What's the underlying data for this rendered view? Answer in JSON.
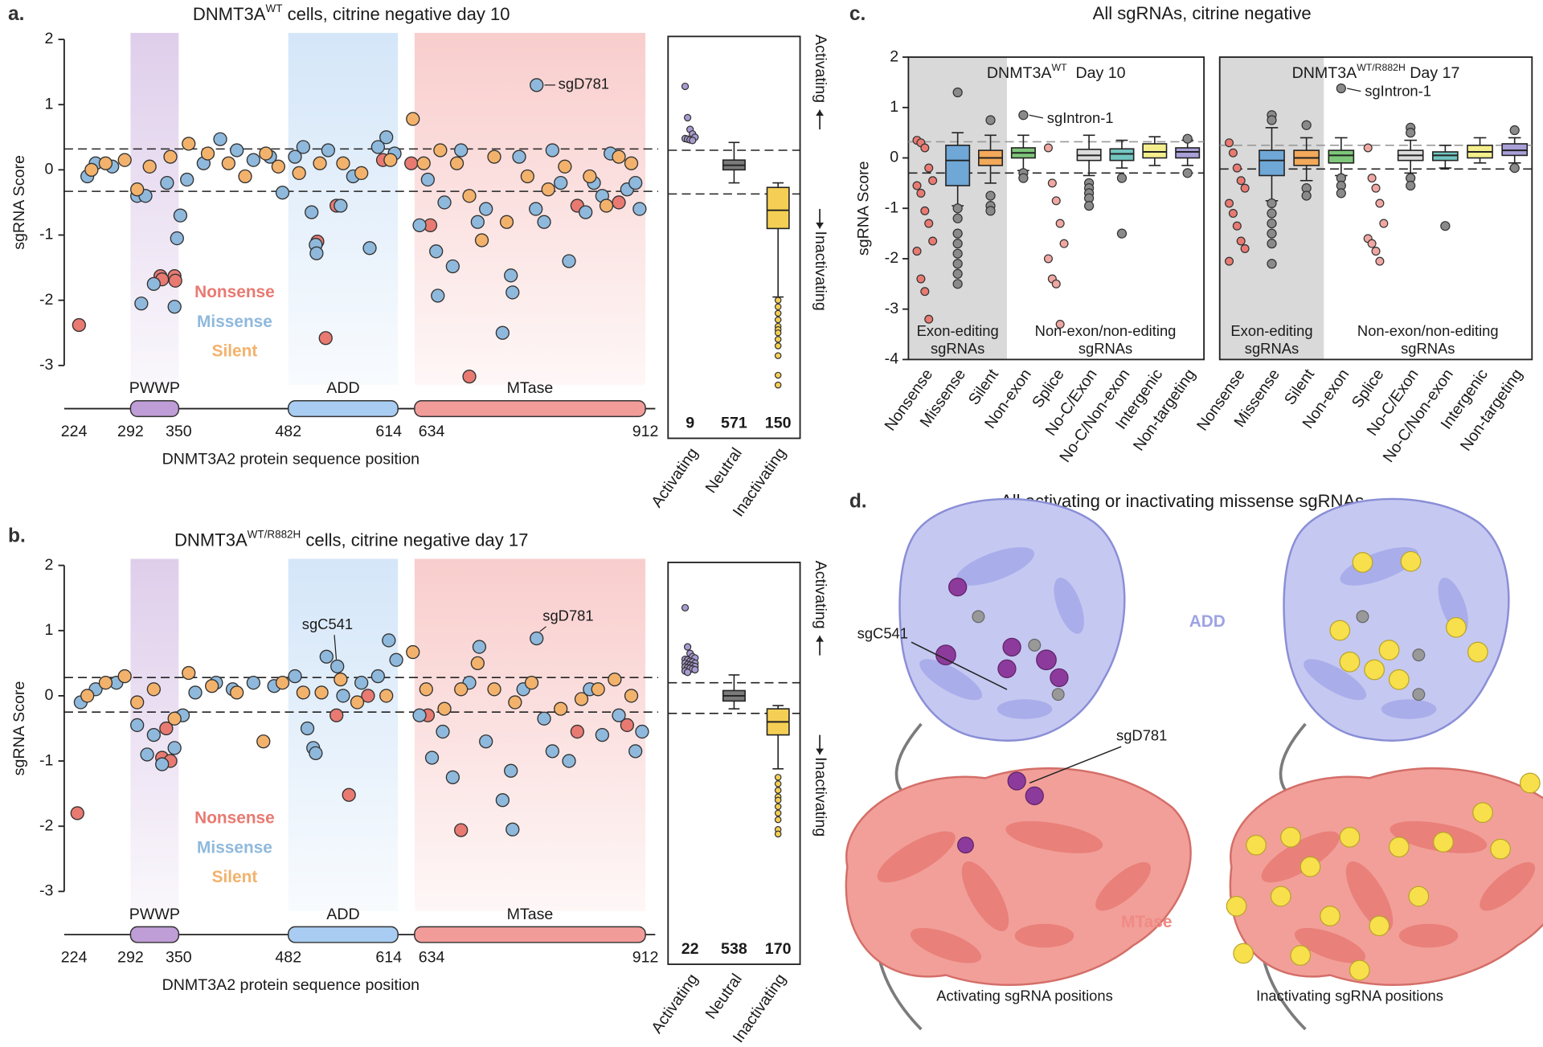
{
  "chart_data": [
    {
      "type": "scatter",
      "panel": "a.",
      "title": {
        "main": "DNMT3A",
        "sup": "WT",
        "rest": " cells, citrine negative day 10"
      },
      "ylabel": "sgRNA Score",
      "xlabel": "DNMT3A2 protein sequence position",
      "xlim": [
        224,
        912
      ],
      "xticks": [
        224,
        292,
        350,
        482,
        614,
        634,
        912
      ],
      "ylim": [
        -3.3,
        2.1
      ],
      "yticks": [
        -3,
        -2,
        -1,
        0,
        1,
        2
      ],
      "thresholds": [
        0.32,
        -0.33
      ],
      "domains": [
        {
          "name": "PWWP",
          "start": 292,
          "end": 350,
          "color": "#bf9dd6"
        },
        {
          "name": "ADD",
          "start": 482,
          "end": 614,
          "color": "#a9cdf2"
        },
        {
          "name": "MTase",
          "start": 634,
          "end": 912,
          "color": "#f29c9a"
        }
      ],
      "series": [
        {
          "name": "Nonsense",
          "color": "#e87a72",
          "x": [
            230,
            328,
            330,
            345,
            346,
            517,
            527,
            596,
            653,
            700,
            830,
            880,
            540,
            630
          ],
          "values": [
            -2.38,
            -1.63,
            -1.68,
            -1.63,
            -1.7,
            -1.1,
            -2.58,
            0.15,
            -0.85,
            -3.17,
            -0.55,
            -0.5,
            -0.55,
            0.1
          ]
        },
        {
          "name": "Missense",
          "color": "#8fb9dc",
          "x": [
            781,
            240,
            250,
            270,
            300,
            310,
            305,
            320,
            336,
            345,
            348,
            352,
            360,
            380,
            400,
            420,
            440,
            460,
            475,
            490,
            500,
            510,
            515,
            516,
            530,
            545,
            560,
            580,
            590,
            600,
            610,
            640,
            650,
            660,
            662,
            670,
            680,
            690,
            710,
            720,
            740,
            750,
            752,
            760,
            780,
            790,
            800,
            810,
            820,
            840,
            850,
            860,
            870,
            890,
            900,
            905
          ],
          "values": [
            1.3,
            -0.1,
            0.1,
            0.05,
            -0.4,
            -0.4,
            -2.05,
            -1.75,
            -0.2,
            -2.1,
            -1.05,
            -0.7,
            -0.15,
            0.1,
            0.47,
            0.3,
            0.15,
            0.2,
            -0.35,
            0.2,
            0.35,
            -0.65,
            -1.15,
            -1.28,
            0.3,
            -0.55,
            -0.1,
            -1.2,
            0.35,
            0.5,
            0.25,
            -0.85,
            -0.15,
            -1.25,
            -1.93,
            -0.5,
            -1.48,
            0.3,
            -0.8,
            -0.6,
            -2.5,
            -1.62,
            -1.88,
            0.2,
            -0.6,
            -0.8,
            0.3,
            -0.2,
            -1.4,
            -0.65,
            -0.2,
            -0.4,
            0.25,
            -0.3,
            -0.2,
            -0.6
          ]
        },
        {
          "name": "Silent",
          "color": "#f3b26c",
          "x": [
            245,
            262,
            285,
            300,
            315,
            340,
            362,
            385,
            410,
            430,
            455,
            470,
            495,
            520,
            548,
            570,
            605,
            632,
            645,
            665,
            685,
            700,
            715,
            730,
            745,
            770,
            795,
            815,
            845,
            865,
            880,
            895
          ],
          "values": [
            0.0,
            0.1,
            0.15,
            -0.3,
            0.05,
            0.2,
            0.4,
            0.25,
            0.1,
            -0.1,
            0.25,
            0.05,
            -0.05,
            0.1,
            0.1,
            -0.05,
            0.15,
            0.78,
            0.1,
            0.3,
            0.1,
            -0.4,
            -1.08,
            0.2,
            -0.8,
            -0.1,
            -0.3,
            0.05,
            -0.1,
            -0.55,
            0.2,
            0.1
          ]
        }
      ],
      "annotations": [
        {
          "text": "sgD781",
          "x": 781,
          "y": 1.3
        }
      ]
    },
    {
      "type": "box",
      "categories": [
        "Activating",
        "Neutral",
        "Inactivating"
      ],
      "counts": [
        9,
        571,
        150
      ],
      "ylim": [
        -3.3,
        2.1
      ],
      "thresholds": [
        0.3,
        -0.37
      ],
      "side_labels": [
        "Activating",
        "Inactivating"
      ],
      "boxes": [
        {
          "color": "#a99bd2",
          "points": [
            1.28,
            0.8,
            0.62,
            0.55,
            0.5,
            0.48,
            0.47,
            0.46,
            0.45
          ]
        },
        {
          "color": "#7a7a7a",
          "q1": 0.0,
          "median": 0.07,
          "q3": 0.15,
          "whislo": -0.2,
          "whishi": 0.42,
          "fliers": []
        },
        {
          "color": "#f5cf55",
          "q1": -0.9,
          "median": -0.62,
          "q3": -0.27,
          "whislo": -1.95,
          "whishi": -0.2,
          "fliers": [
            -2.0,
            -2.1,
            -2.2,
            -2.3,
            -2.4,
            -2.45,
            -2.5,
            -2.6,
            -2.7,
            -2.85,
            -3.15,
            -3.3
          ]
        }
      ]
    },
    {
      "type": "scatter",
      "panel": "b.",
      "title": {
        "main": "DNMT3A",
        "sup": "WT/R882H",
        "rest": " cells, citrine negative day 17"
      },
      "ylabel": "sgRNA Score",
      "xlabel": "DNMT3A2 protein sequence position",
      "xlim": [
        224,
        912
      ],
      "xticks": [
        224,
        292,
        350,
        482,
        614,
        634,
        912
      ],
      "ylim": [
        -3.3,
        2.1
      ],
      "yticks": [
        -3,
        -2,
        -1,
        0,
        1,
        2
      ],
      "thresholds": [
        0.28,
        -0.25
      ],
      "domains": [
        {
          "name": "PWWP",
          "start": 292,
          "end": 350,
          "color": "#bf9dd6"
        },
        {
          "name": "ADD",
          "start": 482,
          "end": 614,
          "color": "#a9cdf2"
        },
        {
          "name": "MTase",
          "start": 634,
          "end": 912,
          "color": "#f29c9a"
        }
      ],
      "series": [
        {
          "name": "Nonsense",
          "color": "#e87a72",
          "x": [
            228,
            330,
            340,
            335,
            555,
            578,
            650,
            690,
            830,
            890,
            540
          ],
          "values": [
            -1.8,
            -0.95,
            -1.0,
            -0.5,
            -1.52,
            0.0,
            -0.3,
            -2.06,
            -0.55,
            -0.45,
            -0.3
          ]
        },
        {
          "name": "Missense",
          "color": "#8fb9dc",
          "x": [
            541,
            781,
            232,
            250,
            275,
            300,
            312,
            320,
            330,
            345,
            355,
            370,
            395,
            415,
            440,
            465,
            490,
            505,
            512,
            515,
            528,
            548,
            570,
            590,
            603,
            612,
            640,
            655,
            668,
            680,
            700,
            712,
            720,
            740,
            750,
            752,
            765,
            790,
            800,
            820,
            845,
            860,
            880,
            900,
            908
          ],
          "values": [
            0.45,
            0.88,
            -0.1,
            0.1,
            0.2,
            -0.45,
            -0.9,
            -0.6,
            -1.05,
            -0.8,
            -0.3,
            0.05,
            0.2,
            0.1,
            0.2,
            0.15,
            0.3,
            -0.5,
            -0.8,
            -0.88,
            0.6,
            0.0,
            0.2,
            0.3,
            0.85,
            0.55,
            -0.3,
            -0.95,
            -0.55,
            -1.25,
            0.2,
            0.75,
            -0.7,
            -1.6,
            -1.15,
            -2.05,
            0.1,
            -0.35,
            -0.85,
            -1.0,
            0.1,
            -0.6,
            -0.3,
            -0.85,
            -0.55
          ]
        },
        {
          "name": "Silent",
          "color": "#f3b26c",
          "x": [
            240,
            262,
            285,
            300,
            320,
            345,
            362,
            390,
            420,
            452,
            475,
            500,
            522,
            545,
            565,
            600,
            632,
            648,
            670,
            690,
            710,
            730,
            755,
            775,
            810,
            835,
            855,
            875,
            895
          ],
          "values": [
            0.0,
            0.2,
            0.3,
            -0.1,
            0.1,
            -0.35,
            0.35,
            0.15,
            0.05,
            -0.7,
            0.2,
            0.05,
            0.05,
            0.25,
            -0.1,
            0.0,
            0.67,
            0.1,
            -0.2,
            0.1,
            0.5,
            0.1,
            -0.1,
            0.2,
            -0.2,
            -0.05,
            0.1,
            0.25,
            0.0
          ]
        }
      ],
      "annotations": [
        {
          "text": "sgC541",
          "x": 541,
          "y": 0.45
        },
        {
          "text": "sgD781",
          "x": 781,
          "y": 0.88
        }
      ]
    },
    {
      "type": "box",
      "categories": [
        "Activating",
        "Neutral",
        "Inactivating"
      ],
      "counts": [
        22,
        538,
        170
      ],
      "ylim": [
        -3.3,
        2.1
      ],
      "thresholds": [
        0.2,
        -0.27
      ],
      "side_labels": [
        "Activating",
        "Inactivating"
      ],
      "boxes": [
        {
          "color": "#a99bd2",
          "points": [
            1.35,
            0.75,
            0.65,
            0.6,
            0.58,
            0.56,
            0.55,
            0.53,
            0.52,
            0.5,
            0.5,
            0.48,
            0.47,
            0.46,
            0.45,
            0.44,
            0.43,
            0.42,
            0.41,
            0.4,
            0.38,
            0.36
          ]
        },
        {
          "color": "#7a7a7a",
          "q1": -0.08,
          "median": 0.0,
          "q3": 0.08,
          "whislo": -0.2,
          "whishi": 0.32,
          "fliers": []
        },
        {
          "color": "#f5cf55",
          "q1": -0.6,
          "median": -0.4,
          "q3": -0.2,
          "whislo": -1.12,
          "whishi": -0.15,
          "fliers": [
            -1.25,
            -1.35,
            -1.45,
            -1.55,
            -1.6,
            -1.7,
            -1.8,
            -1.9,
            -2.05,
            -2.12
          ]
        }
      ]
    },
    {
      "type": "box",
      "subtitle": {
        "main": "DNMT3A",
        "sup": "WT",
        "rest": "  Day 10"
      },
      "ylabel": "sgRNA Score",
      "ylim": [
        -4,
        2
      ],
      "yticks": [
        -4,
        -3,
        -2,
        -1,
        0,
        1,
        2
      ],
      "thresholds": [
        0.32,
        -0.3
      ],
      "groups": [
        [
          "Exon-editing",
          "sgRNAs"
        ],
        [
          "Non-exon/non-editing",
          "sgRNAs"
        ]
      ],
      "categories": [
        "Nonsense",
        "Missense",
        "Silent",
        "Non-exon",
        "Splice",
        "No-C/Exon",
        "No-C/Non-exon",
        "Intergenic",
        "Non-targeting"
      ],
      "boxes": [
        {
          "color": "#e87a72",
          "points": [
            0.35,
            0.3,
            0.2,
            -0.2,
            -0.45,
            -0.55,
            -0.7,
            -1.05,
            -1.3,
            -1.65,
            -1.85,
            -2.4,
            -2.65,
            -3.2
          ]
        },
        {
          "color": "#6fa7d6",
          "q1": -0.55,
          "median": -0.05,
          "q3": 0.25,
          "whislo": -0.95,
          "whishi": 0.5,
          "fliers": [
            1.3,
            -1.0,
            -1.2,
            -1.5,
            -1.7,
            -1.9,
            -2.1,
            -2.3,
            -2.5
          ]
        },
        {
          "color": "#f2a95a",
          "q1": -0.15,
          "median": 0.0,
          "q3": 0.15,
          "whislo": -0.5,
          "whishi": 0.45,
          "fliers": [
            0.75,
            -0.75,
            -0.95,
            -1.05
          ]
        },
        {
          "color": "#7ec77a",
          "q1": 0.0,
          "median": 0.1,
          "q3": 0.2,
          "whislo": -0.25,
          "whishi": 0.45,
          "fliers": [
            0.85,
            -0.3,
            -0.4
          ]
        },
        {
          "color": "#f0a7a2",
          "points": [
            0.2,
            -0.5,
            -0.85,
            -1.3,
            -1.7,
            -2.0,
            -2.4,
            -2.5,
            -3.3
          ]
        },
        {
          "color": "#dcdcdc",
          "q1": -0.05,
          "median": 0.05,
          "q3": 0.17,
          "whislo": -0.35,
          "whishi": 0.45,
          "fliers": [
            -0.5,
            -0.6,
            -0.7,
            -0.8,
            -0.95
          ]
        },
        {
          "color": "#72c6c0",
          "q1": -0.05,
          "median": 0.08,
          "q3": 0.18,
          "whislo": -0.2,
          "whishi": 0.35,
          "fliers": [
            -0.4,
            -1.5
          ]
        },
        {
          "color": "#f4ef8c",
          "q1": 0.0,
          "median": 0.12,
          "q3": 0.28,
          "whislo": -0.15,
          "whishi": 0.42,
          "fliers": []
        },
        {
          "color": "#a9a0d8",
          "q1": 0.0,
          "median": 0.12,
          "q3": 0.2,
          "whislo": -0.15,
          "whishi": 0.35,
          "fliers": [
            0.38,
            -0.3
          ]
        }
      ],
      "annotations": [
        {
          "text": "sgIntron-1",
          "category": "Non-exon",
          "y": 0.85
        }
      ]
    },
    {
      "type": "box",
      "subtitle": {
        "main": "DNMT3A",
        "sup": "WT/R882H",
        "rest": " Day 17"
      },
      "ylim": [
        -4,
        2
      ],
      "thresholds": [
        0.25,
        -0.22
      ],
      "groups": [
        [
          "Exon-editing",
          "sgRNAs"
        ],
        [
          "Non-exon/non-editing",
          "sgRNAs"
        ]
      ],
      "categories": [
        "Nonsense",
        "Missense",
        "Silent",
        "Non-exon",
        "Splice",
        "No-C/Exon",
        "No-C/Non-exon",
        "Intergenic",
        "Non-targeting"
      ],
      "boxes": [
        {
          "color": "#e87a72",
          "points": [
            0.3,
            0.1,
            -0.2,
            -0.45,
            -0.6,
            -0.9,
            -1.1,
            -1.35,
            -1.65,
            -1.8,
            -2.05
          ]
        },
        {
          "color": "#6fa7d6",
          "q1": -0.35,
          "median": -0.05,
          "q3": 0.15,
          "whislo": -0.85,
          "whishi": 0.6,
          "fliers": [
            0.85,
            0.75,
            -0.9,
            -1.1,
            -1.3,
            -1.5,
            -1.7,
            -2.1
          ]
        },
        {
          "color": "#f2a95a",
          "q1": -0.15,
          "median": 0.0,
          "q3": 0.15,
          "whislo": -0.45,
          "whishi": 0.4,
          "fliers": [
            0.65,
            -0.6,
            -0.75
          ]
        },
        {
          "color": "#7ec77a",
          "q1": -0.1,
          "median": 0.05,
          "q3": 0.15,
          "whislo": -0.35,
          "whishi": 0.4,
          "fliers": [
            1.38,
            -0.4,
            -0.55,
            -0.7
          ]
        },
        {
          "color": "#f0a7a2",
          "points": [
            0.2,
            -0.4,
            -0.6,
            -0.9,
            -1.3,
            -1.6,
            -1.7,
            -1.85,
            -2.05
          ]
        },
        {
          "color": "#dcdcdc",
          "q1": -0.05,
          "median": 0.05,
          "q3": 0.15,
          "whislo": -0.3,
          "whishi": 0.35,
          "fliers": [
            0.6,
            0.5,
            -0.4,
            -0.55
          ]
        },
        {
          "color": "#72c6c0",
          "q1": -0.05,
          "median": 0.05,
          "q3": 0.12,
          "whislo": -0.2,
          "whishi": 0.25,
          "fliers": [
            -1.35
          ]
        },
        {
          "color": "#f4ef8c",
          "q1": 0.0,
          "median": 0.12,
          "q3": 0.25,
          "whislo": -0.1,
          "whishi": 0.4,
          "fliers": []
        },
        {
          "color": "#a9a0d8",
          "q1": 0.05,
          "median": 0.15,
          "q3": 0.28,
          "whislo": -0.1,
          "whishi": 0.4,
          "fliers": [
            0.55,
            -0.2
          ]
        }
      ],
      "annotations": [
        {
          "text": "sgIntron-1",
          "category": "Non-exon",
          "y": 1.38
        }
      ]
    }
  ],
  "panel_c": {
    "panel": "c.",
    "title": "All sgRNAs, citrine negative"
  },
  "panel_d": {
    "panel": "d.",
    "title": "All activating or inactivating missense sgRNAs",
    "labels": {
      "add": "ADD",
      "mtase": "MTase",
      "sgc541": "sgC541",
      "sgd781": "sgD781"
    },
    "captions": [
      "Activating sgRNA positions",
      "Inactivating sgRNA positions"
    ]
  }
}
